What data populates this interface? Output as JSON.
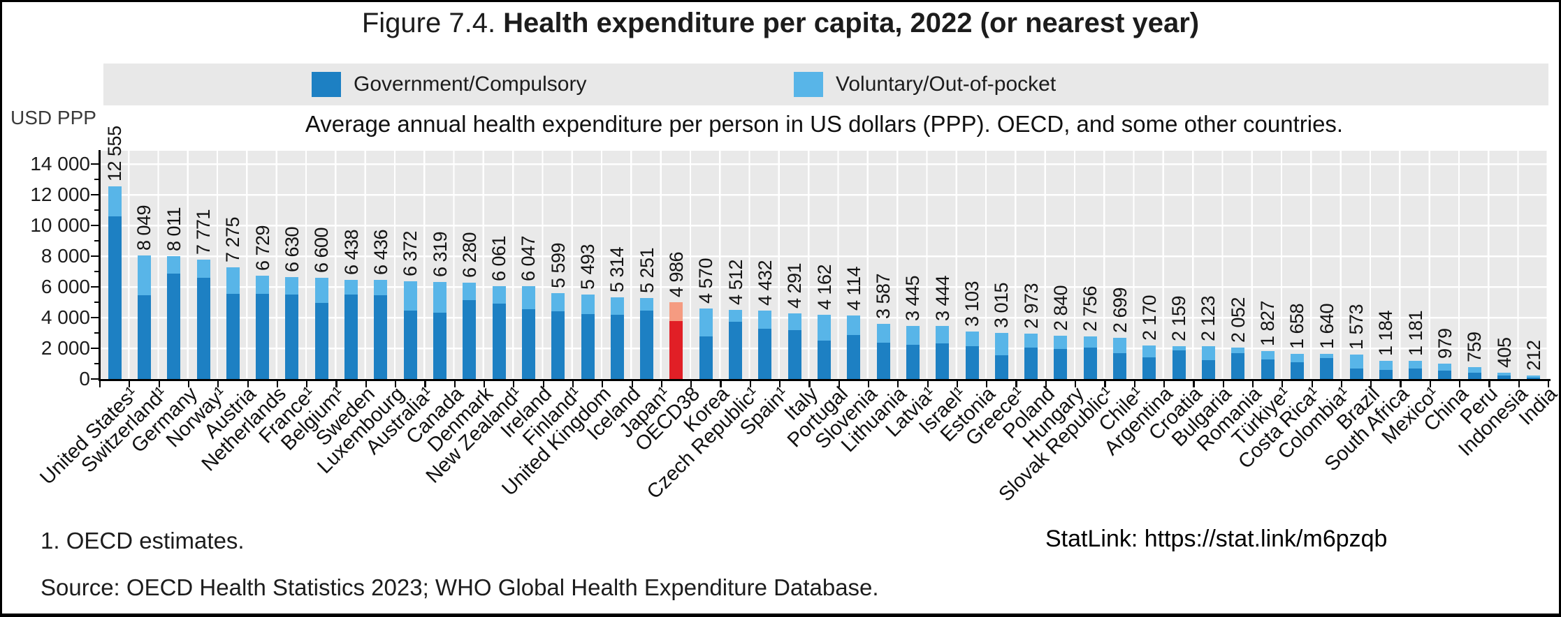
{
  "figure": {
    "title_prefix": "Figure 7.4. ",
    "title_bold": "Health expenditure per capita, 2022 (or nearest year)",
    "subtitle": "Average annual health expenditure per person in US dollars (PPP). OECD, and some other countries.",
    "axis_unit_label": "USD PPP",
    "note": "1. OECD estimates.",
    "statlink": "StatLink: https://stat.link/m6pzqb",
    "source": "Source: OECD Health Statistics 2023; WHO Global Health Expenditure Database."
  },
  "legend": [
    {
      "label": "Government/Compulsory",
      "color": "#1d80c3"
    },
    {
      "label": "Voluntary/Out-of-pocket",
      "color": "#58b5e8"
    }
  ],
  "colors": {
    "government": "#1d80c3",
    "voluntary": "#58b5e8",
    "highlight_government": "#e11f26",
    "highlight_voluntary": "#f59b81",
    "plot_background": "#e9e9e9",
    "legend_band": "#e8e8e8"
  },
  "chart_data": {
    "type": "bar",
    "stacked": true,
    "title": "Health expenditure per capita, 2022 (or nearest year)",
    "ylabel": "USD PPP",
    "ylim": [
      0,
      14000
    ],
    "ytick_interval": 2000,
    "ytick_minor_interval": 1000,
    "grid": true,
    "legend_position": "top",
    "value_labels_rotated": true,
    "highlight_category": "OECD38",
    "series_names": [
      "Government/Compulsory",
      "Voluntary/Out-of-pocket"
    ],
    "categories": [
      "United States¹",
      "Switzerland¹",
      "Germany",
      "Norway¹",
      "Austria",
      "Netherlands",
      "France¹",
      "Belgium¹",
      "Sweden",
      "Luxembourg",
      "Australia¹",
      "Canada",
      "Denmark",
      "New Zealand¹",
      "Ireland",
      "Finland¹",
      "United Kingdom",
      "Iceland",
      "Japan¹",
      "OECD38",
      "Korea",
      "Czech Republic¹",
      "Spain¹",
      "Italy",
      "Portugal",
      "Slovenia",
      "Lithuania",
      "Latvia¹",
      "Israel¹",
      "Estonia",
      "Greece¹",
      "Poland",
      "Hungary",
      "Slovak Republic¹",
      "Chile¹",
      "Argentina",
      "Croatia",
      "Bulgaria",
      "Romania",
      "Türkiye¹",
      "Costa Rica¹",
      "Colombia¹",
      "Brazil",
      "South Africa",
      "Mexico¹",
      "China",
      "Peru",
      "Indonesia",
      "India"
    ],
    "totals": [
      12555,
      8049,
      8011,
      7771,
      7275,
      6729,
      6630,
      6600,
      6438,
      6436,
      6372,
      6319,
      6280,
      6061,
      6047,
      5599,
      5493,
      5314,
      5251,
      4986,
      4570,
      4512,
      4432,
      4291,
      4162,
      4114,
      3587,
      3445,
      3444,
      3103,
      3015,
      2973,
      2840,
      2756,
      2699,
      2170,
      2159,
      2123,
      2052,
      1827,
      1658,
      1640,
      1573,
      1184,
      1181,
      979,
      759,
      405,
      212
    ],
    "government_estimated": [
      10600,
      5460,
      6870,
      6590,
      5550,
      5550,
      5490,
      4960,
      5480,
      5450,
      4460,
      4330,
      5150,
      4900,
      4560,
      4420,
      4240,
      4200,
      4460,
      3780,
      2780,
      3730,
      3280,
      3200,
      2510,
      2880,
      2380,
      2240,
      2330,
      2150,
      1560,
      2060,
      1970,
      2060,
      1680,
      1400,
      1850,
      1230,
      1680,
      1280,
      1080,
      1350,
      660,
      580,
      690,
      550,
      430,
      210,
      90
    ]
  }
}
